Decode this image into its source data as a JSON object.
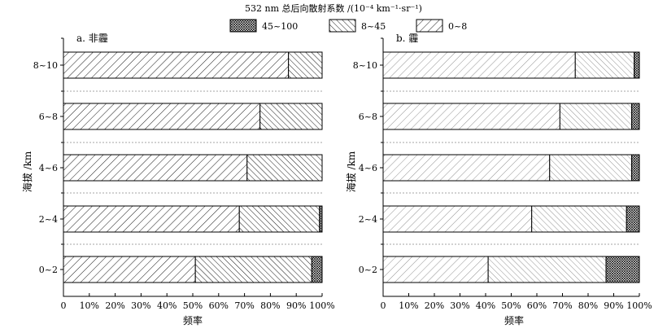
{
  "legend": {
    "title": "532 nm 总后向散射系数 /(10⁻⁴ km⁻¹·sr⁻¹)",
    "items": [
      {
        "label": "45~100",
        "pattern": "crosshatch"
      },
      {
        "label": "8~45",
        "pattern": "dense-diagonal"
      },
      {
        "label": "0~8",
        "pattern": "sparse-diagonal"
      }
    ]
  },
  "chart_data": [
    {
      "type": "bar",
      "orientation": "horizontal",
      "stacked": true,
      "panel_label": "a. 非霾",
      "xlabel": "频率",
      "ylabel": "海拔 /km",
      "xlim": [
        0,
        100
      ],
      "xticks": [
        "0",
        "10%",
        "20%",
        "30%",
        "40%",
        "50%",
        "60%",
        "70%",
        "80%",
        "90%",
        "100%"
      ],
      "categories": [
        "0~2",
        "2~4",
        "4~6",
        "6~8",
        "8~10"
      ],
      "series": [
        {
          "name": "0~8",
          "values": [
            51,
            68,
            71,
            76,
            87
          ]
        },
        {
          "name": "8~45",
          "values": [
            45,
            31,
            29,
            24,
            13
          ]
        },
        {
          "name": "45~100",
          "values": [
            4,
            1,
            0,
            0,
            0
          ]
        }
      ]
    },
    {
      "type": "bar",
      "orientation": "horizontal",
      "stacked": true,
      "panel_label": "b. 霾",
      "xlabel": "频率",
      "ylabel": "海拔 /km",
      "xlim": [
        0,
        100
      ],
      "xticks": [
        "0",
        "10%",
        "20%",
        "30%",
        "40%",
        "50%",
        "60%",
        "70%",
        "80%",
        "90%",
        "100%"
      ],
      "categories": [
        "0~2",
        "2~4",
        "4~6",
        "6~8",
        "8~10"
      ],
      "series": [
        {
          "name": "0~8",
          "values": [
            41,
            58,
            65,
            69,
            75
          ]
        },
        {
          "name": "8~45",
          "values": [
            46,
            37,
            32,
            28,
            23
          ]
        },
        {
          "name": "45~100",
          "values": [
            13,
            5,
            3,
            3,
            2
          ]
        }
      ]
    }
  ]
}
